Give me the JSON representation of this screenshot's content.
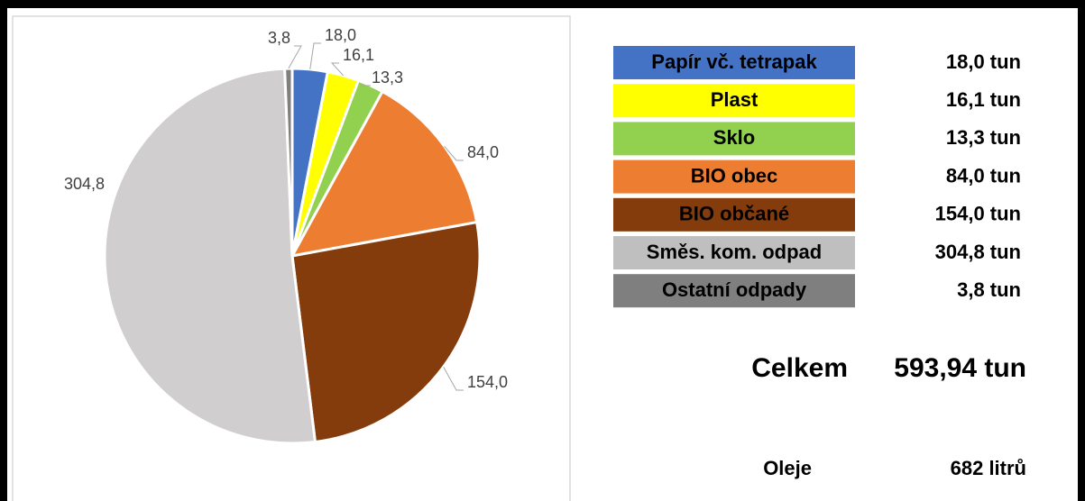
{
  "chart_data": {
    "type": "pie",
    "categories": [
      "Papír vč. tetrapak",
      "Plast",
      "Sklo",
      "BIO obec",
      "BIO občané",
      "Směs. kom. odpad",
      "Ostatní odpady"
    ],
    "values": [
      18.0,
      16.1,
      13.3,
      84.0,
      154.0,
      304.8,
      3.8
    ],
    "value_labels": [
      "18,0",
      "16,1",
      "13,3",
      "84,0",
      "154,0",
      "304,8",
      "3,8"
    ],
    "colors": [
      "#4472c4",
      "#ffff00",
      "#92d050",
      "#ed7d31",
      "#843c0c",
      "#d0cece",
      "#7f7f7f"
    ]
  },
  "table": {
    "amounts": [
      "18,0 tun",
      "16,1 tun",
      "13,3 tun",
      "84,0 tun",
      "154,0 tun",
      "304,8 tun",
      "3,8 tun"
    ]
  },
  "summary": [
    {
      "label": "Celkem",
      "amount": "593,94 tun"
    },
    {
      "label": "Oleje",
      "amount": "682 litrů"
    }
  ]
}
